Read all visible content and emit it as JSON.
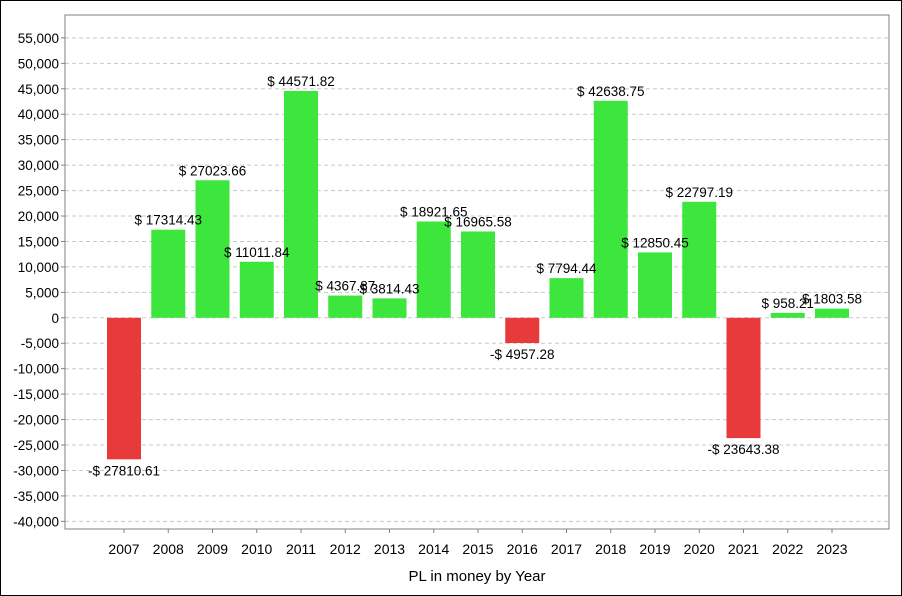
{
  "chart_data": {
    "type": "bar",
    "title": "",
    "xlabel": "PL in money by Year",
    "ylabel": "",
    "categories": [
      "2007",
      "2008",
      "2009",
      "2010",
      "2011",
      "2012",
      "2013",
      "2014",
      "2015",
      "2016",
      "2017",
      "2018",
      "2019",
      "2020",
      "2021",
      "2022",
      "2023"
    ],
    "values": [
      -27810.61,
      17314.43,
      27023.66,
      11011.84,
      44571.82,
      4367.87,
      3814.43,
      18921.65,
      16965.58,
      -4957.28,
      7794.44,
      42638.75,
      12850.45,
      22797.19,
      -23643.38,
      958.21,
      1803.58
    ],
    "data_labels": [
      "-$ 27810.61",
      "$ 17314.43",
      "$ 27023.66",
      "$ 11011.84",
      "$ 44571.82",
      "$ 4367.87",
      "$ 3814.43",
      "$ 18921.65",
      "$ 16965.58",
      "-$ 4957.28",
      "$ 7794.44",
      "$ 42638.75",
      "$ 12850.45",
      "$ 22797.19",
      "-$ 23643.38",
      "$ 958.21",
      "$ 1803.58"
    ],
    "yticks": [
      "-40,000",
      "-35,000",
      "-30,000",
      "-25,000",
      "-20,000",
      "-15,000",
      "-10,000",
      "-5,000",
      "0",
      "5,000",
      "10,000",
      "15,000",
      "20,000",
      "25,000",
      "30,000",
      "35,000",
      "40,000",
      "45,000",
      "50,000",
      "55,000"
    ],
    "ytick_values": [
      -40000,
      -35000,
      -30000,
      -25000,
      -20000,
      -15000,
      -10000,
      -5000,
      0,
      5000,
      10000,
      15000,
      20000,
      25000,
      30000,
      35000,
      40000,
      45000,
      50000,
      55000
    ],
    "ylim": [
      -41500,
      59500
    ],
    "grid": true,
    "legend": "none",
    "colors": {
      "positive": "#3de63d",
      "negative": "#e83a3a",
      "grid": "#c8c8c8",
      "axis": "#808080",
      "text": "#000000"
    }
  }
}
